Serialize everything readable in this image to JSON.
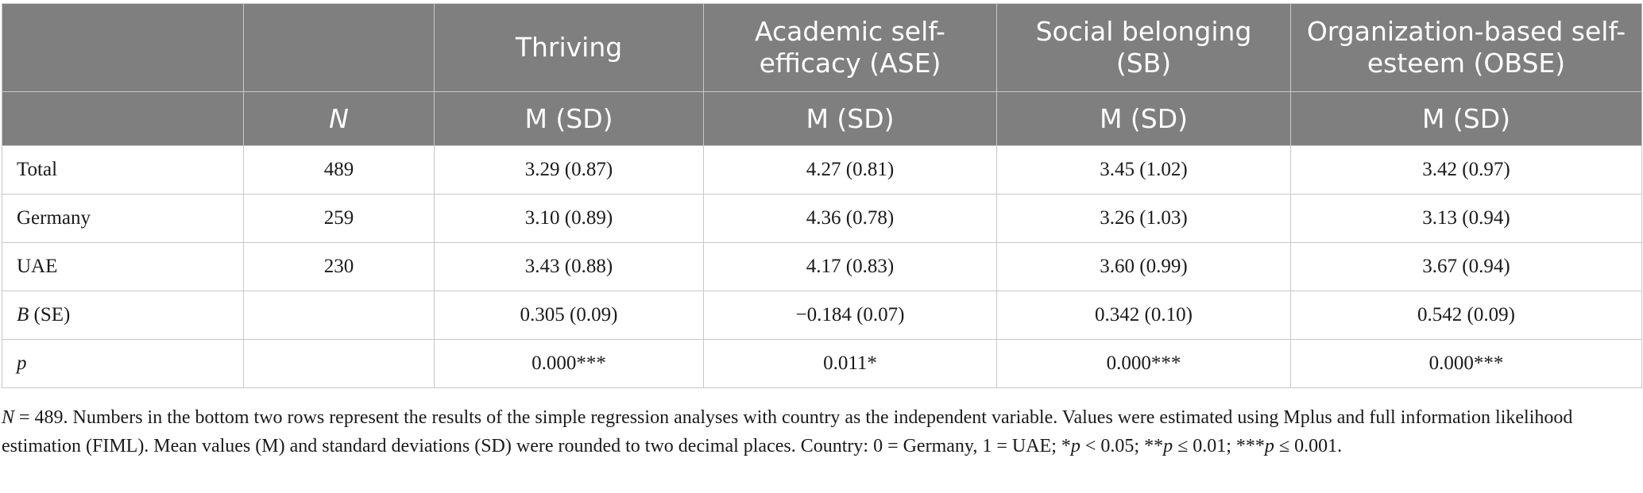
{
  "table": {
    "header_top": [
      "",
      "",
      "Thriving",
      "Academic self-efficacy (ASE)",
      "Social belonging (SB)",
      "Organization-based self-esteem (OBSE)"
    ],
    "header_sub": [
      "",
      "N",
      "M (SD)",
      "M (SD)",
      "M (SD)",
      "M (SD)"
    ],
    "rows": [
      {
        "label": "Total",
        "n": "489",
        "thriving": "3.29 (0.87)",
        "ase": "4.27 (0.81)",
        "sb": "3.45 (1.02)",
        "obse": "3.42 (0.97)"
      },
      {
        "label": "Germany",
        "n": "259",
        "thriving": "3.10 (0.89)",
        "ase": "4.36 (0.78)",
        "sb": "3.26 (1.03)",
        "obse": "3.13 (0.94)"
      },
      {
        "label": "UAE",
        "n": "230",
        "thriving": "3.43 (0.88)",
        "ase": "4.17 (0.83)",
        "sb": "3.60 (0.99)",
        "obse": "3.67 (0.94)"
      },
      {
        "label_italic": "B",
        "label_rest": " (SE)",
        "n": "",
        "thriving": "0.305 (0.09)",
        "ase": "−0.184 (0.07)",
        "sb": "0.342 (0.10)",
        "obse": "0.542 (0.09)"
      },
      {
        "label_italic": "p",
        "label_rest": "",
        "n": "",
        "thriving": "0.000***",
        "ase": "0.011*",
        "sb": "0.000***",
        "obse": "0.000***"
      }
    ]
  },
  "note": {
    "n_italic": "N",
    "part1": " = 489. Numbers in the bottom two rows represent the results of the simple regression analyses with country as the independent variable. Values were estimated using Mplus and full information likelihood estimation (FIML). Mean values (M) and standard deviations (SD) were rounded to two decimal places. Country: 0 = Germany, 1 = UAE; *",
    "p1": "p",
    "part2": " < 0.05; **",
    "p2": "p",
    "part3": " ≤ 0.01; ***",
    "p3": "p",
    "part4": " ≤ 0.001."
  }
}
